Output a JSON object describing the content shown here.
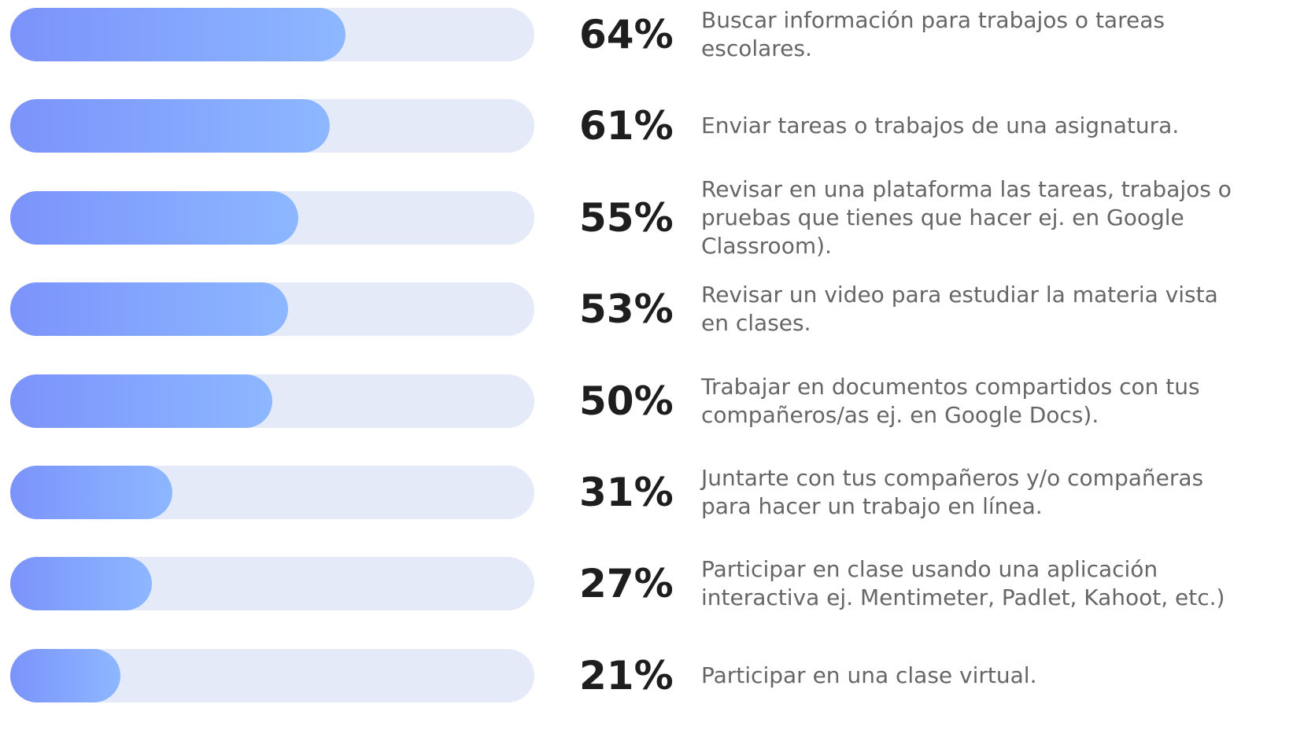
{
  "chart_data": {
    "type": "bar",
    "orientation": "horizontal",
    "categories": [
      "Buscar información para trabajos o tareas escolares.",
      "Enviar tareas o trabajos de una asignatura.",
      "Revisar en una plataforma las tareas, trabajos o pruebas que tienes que hacer ej. en Google Classroom).",
      "Revisar un video para estudiar la materia vista en clases.",
      "Trabajar en documentos compartidos con tus compañeros/as  ej. en Google Docs).",
      "Juntarte con tus compañeros y/o compañeras para hacer un trabajo en línea.",
      "Participar en clase usando una aplicación interactiva ej. Mentimeter, Padlet, Kahoot, etc.)",
      "Participar en una clase virtual."
    ],
    "values": [
      64,
      61,
      55,
      53,
      50,
      31,
      27,
      21
    ],
    "value_labels": [
      "64%",
      "61%",
      "55%",
      "53%",
      "50%",
      "31%",
      "27%",
      "21%"
    ],
    "xlim": [
      0,
      100
    ],
    "color": [
      "#7b93fb",
      "#8db7ff"
    ],
    "track_color": "#e4eaf7"
  }
}
